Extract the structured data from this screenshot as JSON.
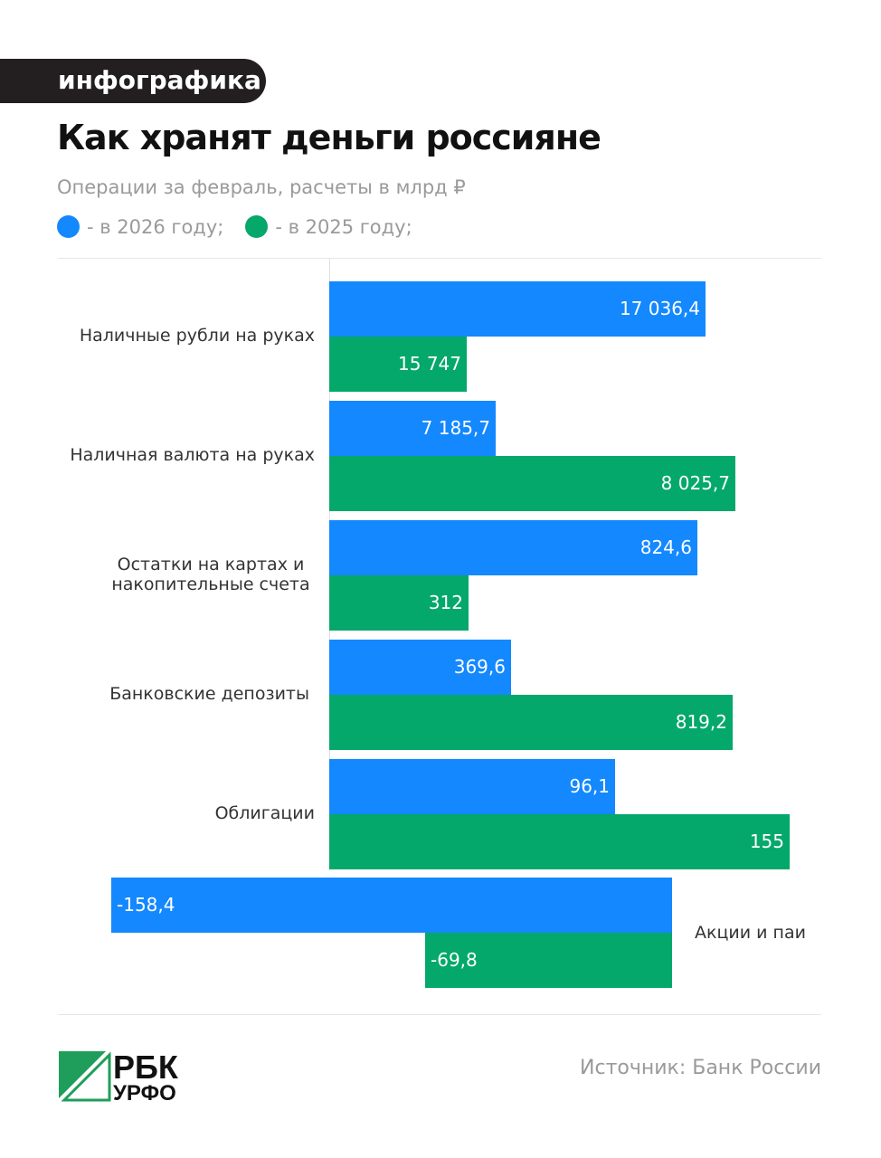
{
  "tag": "инфографика",
  "title": "Как хранят деньги россияне",
  "subtitle": "Операции за февраль, расчеты в млрд ₽",
  "legend": [
    {
      "label": "- в 2026 году;",
      "color": "#1488fe"
    },
    {
      "label": "- в 2025 году;",
      "color": "#04a86b"
    }
  ],
  "source": "Источник: Банк России",
  "logo": {
    "line1": "РБК",
    "line2": "УРФО"
  },
  "chart_data": {
    "type": "bar",
    "orientation": "horizontal",
    "title": "Как хранят деньги россияне",
    "subtitle": "Операции за февраль, расчеты в млрд ₽",
    "categories": [
      "Наличные рубли на руках",
      "Наличная валюта на руках",
      "Остатки на картах и накопительные счета",
      "Банковские депозиты",
      "Облигации",
      "Акции и паи"
    ],
    "series": [
      {
        "name": "- в 2026 году;",
        "color": "#1488fe",
        "values": [
          17036.4,
          7185.7,
          824.6,
          369.6,
          96.1,
          -158.4
        ],
        "labels": [
          "17 036,4",
          "7 185,7",
          "824,6",
          "369,6",
          "96,1",
          "-158,4"
        ]
      },
      {
        "name": "- в 2025 году;",
        "color": "#04a86b",
        "values": [
          15747,
          8025.7,
          312,
          819.2,
          155,
          -69.8
        ],
        "labels": [
          "15 747",
          "8 025,7",
          "312",
          "819,2",
          "155",
          "-69,8"
        ]
      }
    ],
    "legend_position": "top-left",
    "grid": false
  }
}
